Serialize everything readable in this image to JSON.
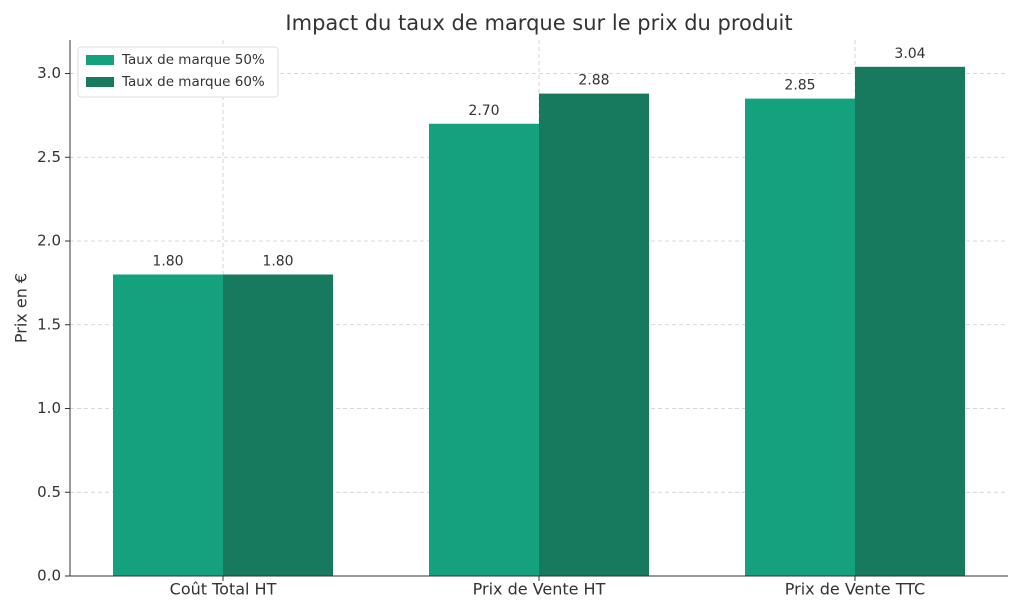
{
  "chart_data": {
    "type": "bar",
    "title": "Impact du taux de marque sur le prix du produit",
    "y_label": "Prix en €",
    "categories": [
      "Coût Total HT",
      "Prix de Vente HT",
      "Prix de Vente TTC"
    ],
    "series": [
      {
        "name": "Taux de marque 50%",
        "color": "#13a27d",
        "values": [
          1.8,
          2.7,
          2.85
        ],
        "value_labels": [
          "1.80",
          "2.70",
          "2.85"
        ]
      },
      {
        "name": "Taux de marque 60%",
        "color": "#177a5f",
        "values": [
          1.8,
          2.88,
          3.04
        ],
        "value_labels": [
          "1.80",
          "2.88",
          "3.04"
        ]
      }
    ],
    "ylim": [
      0,
      3.2
    ],
    "yticks": [
      {
        "value": 0,
        "label": "0.0"
      },
      0.5,
      {
        "value": 1,
        "label": "1.0"
      },
      1.5,
      {
        "value": 2,
        "label": "2.0"
      },
      2.5,
      {
        "value": 3,
        "label": "3.0"
      }
    ],
    "grid": true,
    "legend": "upper-left"
  }
}
